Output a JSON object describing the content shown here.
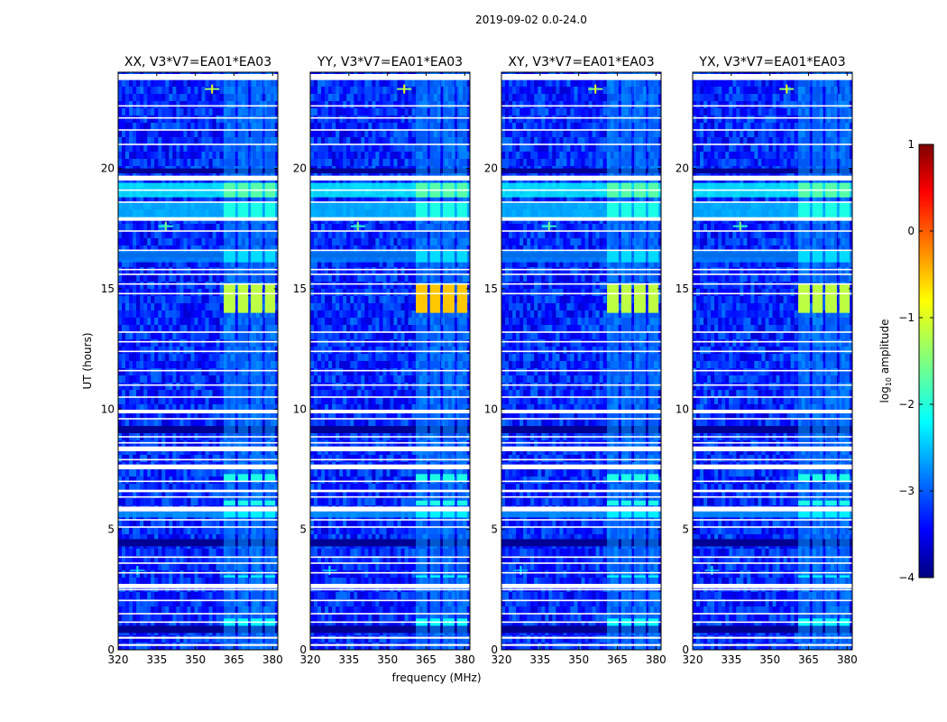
{
  "chart_data": {
    "type": "heatmap",
    "suptitle": "2019-09-02 0.0-24.0",
    "xlabel": "frequency (MHz)",
    "ylabel": "UT (hours)",
    "xlim": [
      320,
      382
    ],
    "ylim": [
      0,
      24
    ],
    "xticks": [
      320,
      335,
      350,
      365,
      380
    ],
    "yticks": [
      0,
      5,
      10,
      15,
      20
    ],
    "panels": [
      {
        "id": "XX",
        "title": "XX, V3*V7=EA01*EA03",
        "burst_peak": -1.2
      },
      {
        "id": "YY",
        "title": "YY, V3*V7=EA01*EA03",
        "burst_peak": -0.6
      },
      {
        "id": "XY",
        "title": "XY, V3*V7=EA01*EA03",
        "burst_peak": -1.2
      },
      {
        "id": "YX",
        "title": "YX, V3*V7=EA01*EA03",
        "burst_peak": -1.2
      }
    ],
    "rfi_band_mhz": [
      361,
      381
    ],
    "rfi_channels_mhz": [
      [
        361,
        365.5
      ],
      [
        366.5,
        370.5
      ],
      [
        371.5,
        376
      ],
      [
        377,
        381
      ]
    ],
    "event_bursts": [
      {
        "freq": 356.5,
        "time": 23.3,
        "value": -1.0
      },
      {
        "freq": 338.5,
        "time": 17.6,
        "value": -1.5
      },
      {
        "freq": 327.5,
        "time": 3.3,
        "value": -2.2
      }
    ],
    "flagged_times_hours": [
      0.2,
      0.5,
      1.15,
      1.5,
      2.05,
      2.5,
      2.65,
      3.2,
      3.6,
      3.85,
      5.1,
      5.4,
      5.85,
      6.35,
      6.6,
      7.0,
      7.6,
      7.9,
      8.35,
      8.6,
      8.85,
      9.6,
      9.9,
      10.5,
      11.0,
      11.6,
      12.4,
      12.8,
      13.2,
      14.8,
      15.2,
      15.6,
      15.8,
      16.6,
      17.4,
      17.9,
      18.6,
      19.1,
      19.6,
      21.0,
      21.6,
      22.1,
      22.6,
      23.8
    ],
    "flagged_widths_hours": [
      0.08,
      0.08,
      0.06,
      0.06,
      0.06,
      0.06,
      0.18,
      0.06,
      0.06,
      0.06,
      0.06,
      0.06,
      0.2,
      0.06,
      0.1,
      0.06,
      0.2,
      0.06,
      0.2,
      0.06,
      0.06,
      0.06,
      0.15,
      0.06,
      0.06,
      0.06,
      0.06,
      0.06,
      0.06,
      0.06,
      0.06,
      0.06,
      0.06,
      0.06,
      0.06,
      0.15,
      0.06,
      0.06,
      0.2,
      0.06,
      0.06,
      0.06,
      0.06,
      0.25
    ],
    "bright_segments": [
      {
        "start": 18.8,
        "end": 19.4,
        "value": -1.7,
        "broadband": true
      },
      {
        "start": 17.9,
        "end": 18.6,
        "value": -2.0,
        "broadband": true
      },
      {
        "start": 16.1,
        "end": 16.6,
        "value": -2.3,
        "broadband": true
      },
      {
        "start": 14.0,
        "end": 15.2,
        "value": -1.2,
        "broadband": false
      },
      {
        "start": 7.0,
        "end": 7.3,
        "value": -2.0,
        "broadband": false
      },
      {
        "start": 6.0,
        "end": 6.2,
        "value": -2.0,
        "broadband": false
      },
      {
        "start": 5.5,
        "end": 5.75,
        "value": -2.2,
        "broadband": true
      },
      {
        "start": 3.0,
        "end": 3.1,
        "value": -2.2,
        "broadband": false
      },
      {
        "start": 1.0,
        "end": 1.3,
        "value": -2.1,
        "broadband": false
      }
    ],
    "colorbar": {
      "label": "log",
      "label_sub": "10",
      "label_suffix": " amplitude",
      "vmin": -4,
      "vmax": 1,
      "ticks": [
        1,
        0,
        -1,
        -2,
        -3,
        -4
      ],
      "tick_labels": [
        "1",
        "0",
        "−1",
        "−2",
        "−3",
        "−4"
      ],
      "colormap": "jet"
    }
  }
}
